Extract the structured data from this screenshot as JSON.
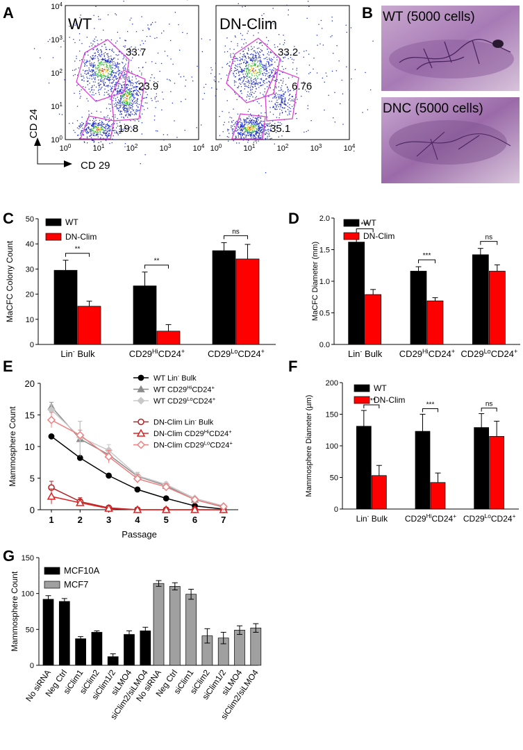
{
  "panel_labels": [
    "A",
    "B",
    "C",
    "D",
    "E",
    "F",
    "G"
  ],
  "flow": {
    "ylabel": "CD 24",
    "xlabel": "CD 29",
    "ticks": [
      "10^0",
      "10^1",
      "10^2",
      "10^3",
      "10^4"
    ],
    "plots": [
      {
        "name": "WT",
        "gates": [
          "33.7",
          "23.9",
          "19.8"
        ]
      },
      {
        "name": "DN-Clim",
        "gates": [
          "33.2",
          "6.76",
          "35.1"
        ]
      }
    ]
  },
  "micro": {
    "top_label": "WT (5000 cells)",
    "bottom_label": "DNC (5000 cells)"
  },
  "chart_data": [
    {
      "panel": "C",
      "type": "bar",
      "categories": [
        "Lin- Bulk",
        "CD29HiCD24+",
        "CD29LoCD24+"
      ],
      "ylabel": "MaCFC Colony Count",
      "ylim": [
        0,
        50
      ],
      "yticks": [
        "0",
        "10",
        "20",
        "30",
        "40",
        "50"
      ],
      "series": [
        {
          "name": "WT",
          "color": "#000000",
          "values": [
            29.5,
            23.3,
            37.3
          ],
          "err": [
            4,
            5.5,
            3.2
          ]
        },
        {
          "name": "DN-Clim",
          "color": "#ff0000",
          "values": [
            15.2,
            5.3,
            34.0
          ],
          "err": [
            2,
            2.6,
            5.8
          ]
        }
      ],
      "sig": [
        "**",
        "**",
        "ns"
      ]
    },
    {
      "panel": "D",
      "type": "bar",
      "categories": [
        "Lin- Bulk",
        "CD29HiCD24+",
        "CD29LoCD24+"
      ],
      "ylabel": "MaCFC Diameter (mm)",
      "ylim": [
        0,
        2.0
      ],
      "yticks": [
        "0.0",
        "0.5",
        "1.0",
        "1.5",
        "2.0"
      ],
      "series": [
        {
          "name": "WT",
          "color": "#000000",
          "values": [
            1.62,
            1.16,
            1.42
          ],
          "err": [
            0.1,
            0.07,
            0.1
          ]
        },
        {
          "name": "DN-Clim",
          "color": "#ff0000",
          "values": [
            0.79,
            0.69,
            1.16
          ],
          "err": [
            0.08,
            0.05,
            0.1
          ]
        }
      ],
      "sig": [
        "***",
        "***",
        "ns"
      ]
    },
    {
      "panel": "E",
      "type": "line",
      "x": [
        1,
        2,
        3,
        4,
        5,
        6,
        7
      ],
      "xlabel": "Passage",
      "ylabel": "Mammosphere Count",
      "ylim": [
        0,
        20
      ],
      "yticks": [
        "0",
        "5",
        "10",
        "15",
        "20"
      ],
      "series": [
        {
          "name": "WT Lin- Bulk",
          "color": "#000000",
          "marker": "circle-filled",
          "values": [
            11.6,
            8.2,
            5.4,
            3.2,
            1.8,
            0.6,
            0.1
          ],
          "err": [
            0.3,
            0.3,
            0.2,
            0.2,
            0.2,
            0.1,
            0
          ]
        },
        {
          "name": "WT CD29HiCD24+",
          "color": "#8c8c8c",
          "marker": "triangle-filled",
          "values": [
            16.3,
            11.2,
            8.7,
            5.3,
            3.8,
            1.6,
            0.4
          ],
          "err": [
            0.7,
            2.8,
            1,
            0.6,
            0.4,
            0.2,
            0.1
          ]
        },
        {
          "name": "WT CD29LoCD24+",
          "color": "#c8c8c8",
          "marker": "diamond-filled",
          "values": [
            15.8,
            11.5,
            9.4,
            5.4,
            4.0,
            1.8,
            0.6
          ],
          "err": [
            0.8,
            2.5,
            0.9,
            0.5,
            0.4,
            0.2,
            0.1
          ]
        },
        {
          "name": "DN-Clim Lin- Bulk",
          "color": "#b22222",
          "marker": "circle-open",
          "values": [
            3.5,
            1.3,
            0.3,
            0,
            0,
            0,
            0
          ],
          "err": [
            1,
            0.6,
            0.3,
            0,
            0,
            0,
            0
          ]
        },
        {
          "name": "DN-Clim CD29HiCD24+",
          "color": "#e02020",
          "marker": "triangle-open",
          "values": [
            2.1,
            1.1,
            0.2,
            0,
            0,
            0,
            0
          ],
          "err": [
            1.2,
            0.5,
            0.2,
            0,
            0,
            0,
            0
          ]
        },
        {
          "name": "DN-Clim CD29LoCD24+",
          "color": "#f08080",
          "marker": "diamond-open",
          "values": [
            14.2,
            11.8,
            8.4,
            4.9,
            3.6,
            1.6,
            0.5
          ],
          "err": [
            1.2,
            0.8,
            1,
            0.7,
            0.5,
            0.2,
            0.1
          ]
        }
      ],
      "legend": [
        {
          "main": "WT Lin",
          "sup1": "-",
          "mid": " Bulk",
          "sup2": "",
          "tail": ""
        },
        {
          "main": "WT CD29",
          "sup1": "Hi",
          "mid": "CD24",
          "sup2": "+",
          "tail": ""
        },
        {
          "main": "WT CD29",
          "sup1": "Lo",
          "mid": "CD24",
          "sup2": "+",
          "tail": ""
        },
        {
          "main": "DN-Clim Lin",
          "sup1": "-",
          "mid": " Bulk",
          "sup2": "",
          "tail": ""
        },
        {
          "main": "DN-Clim CD29",
          "sup1": "Hi",
          "mid": "CD24",
          "sup2": "+",
          "tail": ""
        },
        {
          "main": "DN-Clim CD29",
          "sup1": "Lo",
          "mid": "CD24",
          "sup2": "+",
          "tail": ""
        }
      ]
    },
    {
      "panel": "F",
      "type": "bar",
      "categories": [
        "Lin- Bulk",
        "CD29HiCD24+",
        "CD29LoCD24+"
      ],
      "ylabel": "Mammosphere Diameter (µm)",
      "ylim": [
        0,
        200
      ],
      "yticks": [
        "0",
        "50",
        "100",
        "150",
        "200"
      ],
      "series": [
        {
          "name": "WT",
          "color": "#000000",
          "values": [
            131,
            123,
            129
          ],
          "err": [
            25,
            27,
            22
          ]
        },
        {
          "name": "DN-Clim",
          "color": "#ff0000",
          "values": [
            53,
            42,
            115
          ],
          "err": [
            16,
            15,
            24
          ]
        }
      ],
      "sig": [
        "***",
        "***",
        "ns"
      ]
    },
    {
      "panel": "G",
      "type": "bar",
      "categories": [
        "No siRNA",
        "Neg Ctrl",
        "siClim1",
        "siClim2",
        "siClim1/2",
        "siLMO4",
        "siClim2/siLMO4"
      ],
      "ylabel": "Mammosphere Count",
      "ylim": [
        0,
        150
      ],
      "yticks": [
        "0",
        "50",
        "100",
        "150"
      ],
      "series": [
        {
          "name": "MCF10A",
          "color": "#000000",
          "values": [
            92,
            89,
            37,
            46,
            12,
            43,
            48
          ],
          "err": [
            5,
            4,
            3,
            2,
            4,
            5,
            5
          ]
        },
        {
          "name": "MCF7",
          "color": "#a0a0a0",
          "values": [
            114,
            110,
            99,
            41,
            38,
            49,
            52
          ],
          "err": [
            4,
            5,
            7,
            10,
            8,
            6,
            6
          ]
        }
      ]
    }
  ],
  "cat_text": [
    {
      "main": "Lin",
      "sup1": "-",
      "mid": " Bulk",
      "sup2": ""
    },
    {
      "main": "CD29",
      "sup1": "Hi",
      "mid": "CD24",
      "sup2": "+"
    },
    {
      "main": "CD29",
      "sup1": "Lo",
      "mid": "CD24",
      "sup2": "+"
    }
  ]
}
